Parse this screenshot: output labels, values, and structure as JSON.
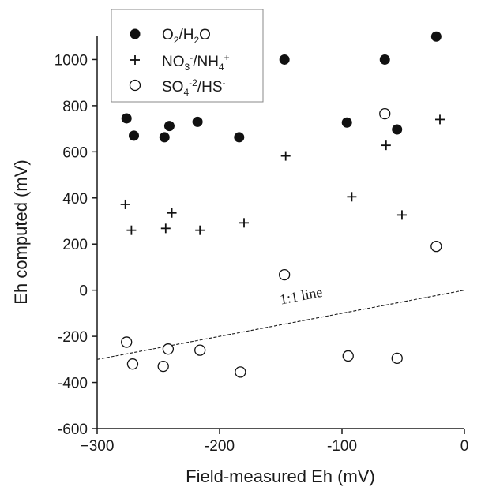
{
  "chart_data": {
    "type": "scatter",
    "xlabel": "Field-measured Eh (mV)",
    "ylabel": "Eh computed (mV)",
    "xlim": [
      -300,
      0
    ],
    "ylim": [
      -600,
      1200
    ],
    "x_ticks": [
      -300,
      -200,
      -100,
      0
    ],
    "x_tick_labels": [
      "−300",
      "-200",
      "-100",
      "0"
    ],
    "y_ticks": [
      -600,
      -400,
      -200,
      0,
      200,
      400,
      600,
      800,
      1000
    ],
    "y_tick_labels": [
      "-600",
      "-400",
      "-200",
      "0",
      "200",
      "400",
      "600",
      "800",
      "1000"
    ],
    "grid": false,
    "legend_position": "top-left",
    "series": [
      {
        "name": "O2/H2O",
        "marker": "filled-circle",
        "color": "#111111",
        "points": [
          [
            -276,
            745
          ],
          [
            -270,
            670
          ],
          [
            -245,
            663
          ],
          [
            -241,
            712
          ],
          [
            -218,
            730
          ],
          [
            -184,
            663
          ],
          [
            -147,
            1000
          ],
          [
            -96,
            727
          ],
          [
            -65,
            1000
          ],
          [
            -55,
            697
          ],
          [
            -23,
            1100
          ]
        ]
      },
      {
        "name": "NO3-/NH4+",
        "marker": "plus",
        "color": "#111111",
        "points": [
          [
            -277,
            372
          ],
          [
            -272,
            260
          ],
          [
            -244,
            268
          ],
          [
            -239,
            335
          ],
          [
            -216,
            260
          ],
          [
            -180,
            292
          ],
          [
            -146,
            582
          ],
          [
            -92,
            405
          ],
          [
            -64,
            628
          ],
          [
            -51,
            326
          ],
          [
            -20,
            740
          ]
        ]
      },
      {
        "name": "SO4-2/HS-",
        "marker": "open-circle",
        "color": "#111111",
        "points": [
          [
            -276,
            -225
          ],
          [
            -271,
            -320
          ],
          [
            -246,
            -330
          ],
          [
            -242,
            -255
          ],
          [
            -216,
            -260
          ],
          [
            -183,
            -355
          ],
          [
            -147,
            67
          ],
          [
            -95,
            -285
          ],
          [
            -65,
            765
          ],
          [
            -55,
            -295
          ],
          [
            -23,
            190
          ]
        ]
      }
    ],
    "annotations": [
      {
        "text": "1:1 line",
        "kind": "line",
        "x": [
          -300,
          0
        ],
        "y": [
          -300,
          0
        ],
        "dash": true
      }
    ]
  },
  "legend": [
    {
      "marker": "filled-circle",
      "base1": "O",
      "sub1": "2",
      "base2": "/H",
      "sub2": "2",
      "base3": "O"
    },
    {
      "marker": "plus",
      "base1": "NO",
      "sub1": "3",
      "sup1": "-",
      "base2": "/NH",
      "sub2": "4",
      "sup2": "+"
    },
    {
      "marker": "open-circle",
      "base1": "SO",
      "sub1": "4",
      "sup1": "-2",
      "base2": "/HS",
      "sup2": "-"
    }
  ]
}
